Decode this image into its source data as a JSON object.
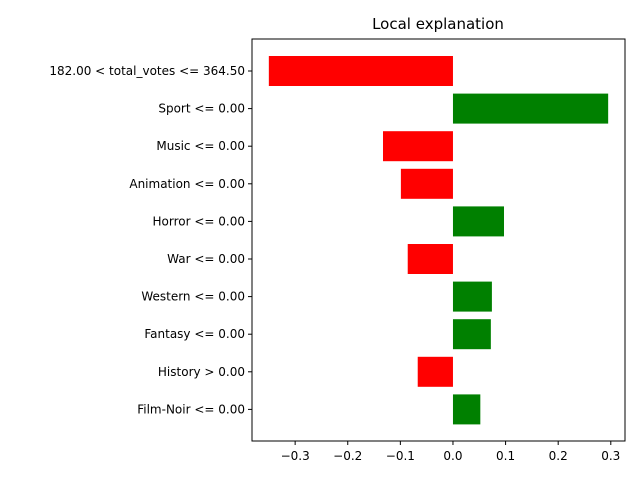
{
  "chart_data": {
    "type": "bar",
    "orientation": "horizontal",
    "title": "Local explanation",
    "xlabel": "",
    "ylabel": "",
    "categories": [
      "182.00 < total_votes <= 364.50",
      "Sport <= 0.00",
      "Music <= 0.00",
      "Animation <= 0.00",
      "Horror <= 0.00",
      "War <= 0.00",
      "Western <= 0.00",
      "Fantasy <= 0.00",
      "History > 0.00",
      "Film-Noir <= 0.00"
    ],
    "values": [
      -0.35,
      0.295,
      -0.133,
      -0.099,
      0.097,
      -0.086,
      0.074,
      0.072,
      -0.067,
      0.052
    ],
    "xlim": [
      -0.382,
      0.327
    ],
    "xticks": [
      -0.3,
      -0.2,
      -0.1,
      0.0,
      0.1,
      0.2,
      0.3
    ],
    "xtick_labels": [
      "−0.3",
      "−0.2",
      "−0.1",
      "0.0",
      "0.1",
      "0.2",
      "0.3"
    ],
    "grid": false,
    "colors": {
      "positive": "#008000",
      "negative": "#ff0000"
    }
  }
}
